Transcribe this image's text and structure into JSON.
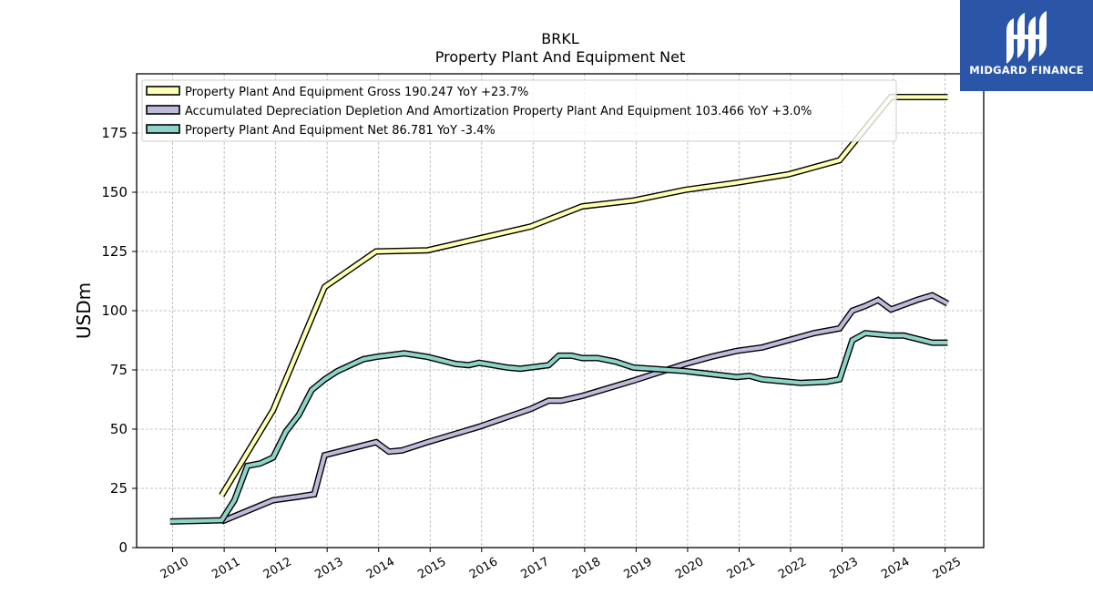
{
  "chart_data": {
    "type": "line",
    "title": "BRKL",
    "subtitle": "Property Plant And Equipment Net",
    "ylabel": "USDm",
    "xlabel": "",
    "ylim": [
      0,
      200
    ],
    "xlim": [
      2009.3,
      2025.75
    ],
    "yticks": [
      0,
      25,
      50,
      75,
      100,
      125,
      150,
      175
    ],
    "xticks": [
      "2010",
      "2011",
      "2012",
      "2013",
      "2014",
      "2015",
      "2016",
      "2017",
      "2018",
      "2019",
      "2020",
      "2021",
      "2022",
      "2023",
      "2024",
      "2025"
    ],
    "grid": true,
    "legend_position": "top-left",
    "series": [
      {
        "name": "Property Plant And Equipment Gross",
        "legend_label": "Property Plant And Equipment Gross  190.247 YoY +23.7%",
        "color": "#ffffb3",
        "points": [
          [
            2010.95,
            22
          ],
          [
            2011.95,
            58
          ],
          [
            2012.95,
            110
          ],
          [
            2013.95,
            125
          ],
          [
            2014.95,
            125.5
          ],
          [
            2015.95,
            130.5
          ],
          [
            2016.95,
            135.5
          ],
          [
            2017.95,
            144
          ],
          [
            2018.95,
            146.5
          ],
          [
            2019.95,
            151
          ],
          [
            2020.95,
            154
          ],
          [
            2021.95,
            157.5
          ],
          [
            2022.95,
            163.5
          ],
          [
            2023.95,
            190.2
          ],
          [
            2025.05,
            190.2
          ]
        ]
      },
      {
        "name": "Accumulated Depreciation Depletion And Amortization Property Plant And Equipment",
        "legend_label": "Accumulated Depreciation Depletion And Amortization Property Plant And Equipment  103.466 YoY +3.0%",
        "color": "#bebada",
        "points": [
          [
            2010.95,
            11
          ],
          [
            2011.95,
            20
          ],
          [
            2012.45,
            21.5
          ],
          [
            2012.75,
            22.5
          ],
          [
            2012.95,
            39
          ],
          [
            2013.95,
            44.5
          ],
          [
            2014.2,
            40.5
          ],
          [
            2014.45,
            41
          ],
          [
            2014.95,
            44.5
          ],
          [
            2015.95,
            51
          ],
          [
            2016.95,
            58.5
          ],
          [
            2017.3,
            62
          ],
          [
            2017.55,
            62
          ],
          [
            2017.95,
            64
          ],
          [
            2018.95,
            70.5
          ],
          [
            2019.95,
            77.5
          ],
          [
            2020.45,
            80.5
          ],
          [
            2020.95,
            83
          ],
          [
            2021.45,
            84.5
          ],
          [
            2021.95,
            87.5
          ],
          [
            2022.45,
            90.5
          ],
          [
            2022.95,
            92.5
          ],
          [
            2023.2,
            100
          ],
          [
            2023.45,
            102
          ],
          [
            2023.7,
            104.5
          ],
          [
            2023.95,
            100.5
          ],
          [
            2024.2,
            102.5
          ],
          [
            2024.45,
            104.5
          ],
          [
            2024.75,
            106.5
          ],
          [
            2025.05,
            103
          ]
        ]
      },
      {
        "name": "Property Plant And Equipment Net",
        "legend_label": "Property Plant And Equipment Net  86.781 YoY -3.4%",
        "color": "#8dd3c7",
        "points": [
          [
            2009.95,
            11
          ],
          [
            2010.95,
            11.5
          ],
          [
            2011.2,
            20
          ],
          [
            2011.45,
            34.5
          ],
          [
            2011.7,
            35.5
          ],
          [
            2011.95,
            38
          ],
          [
            2012.2,
            49
          ],
          [
            2012.45,
            56
          ],
          [
            2012.7,
            66.5
          ],
          [
            2012.95,
            71
          ],
          [
            2013.2,
            74.5
          ],
          [
            2013.7,
            79.5
          ],
          [
            2013.95,
            80.5
          ],
          [
            2014.5,
            82
          ],
          [
            2014.95,
            80.5
          ],
          [
            2015.5,
            77.5
          ],
          [
            2015.75,
            77
          ],
          [
            2015.95,
            78
          ],
          [
            2016.5,
            76
          ],
          [
            2016.75,
            75.5
          ],
          [
            2017.3,
            77
          ],
          [
            2017.5,
            81
          ],
          [
            2017.75,
            81
          ],
          [
            2017.95,
            80
          ],
          [
            2018.25,
            80
          ],
          [
            2018.6,
            78.5
          ],
          [
            2018.95,
            76
          ],
          [
            2019.3,
            75.5
          ],
          [
            2019.95,
            74.5
          ],
          [
            2020.95,
            72
          ],
          [
            2021.2,
            72.5
          ],
          [
            2021.45,
            71
          ],
          [
            2021.95,
            70
          ],
          [
            2022.2,
            69.5
          ],
          [
            2022.7,
            70
          ],
          [
            2022.95,
            71
          ],
          [
            2023.2,
            87.5
          ],
          [
            2023.45,
            90.5
          ],
          [
            2023.95,
            89.5
          ],
          [
            2024.2,
            89.5
          ],
          [
            2024.75,
            86.5
          ],
          [
            2025.05,
            86.5
          ]
        ]
      }
    ]
  },
  "logo": {
    "text": "MIDGARD FINANCE",
    "color": "#2b56a8"
  }
}
